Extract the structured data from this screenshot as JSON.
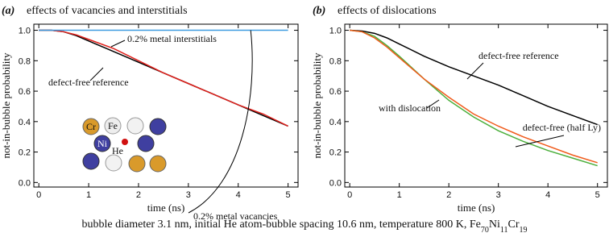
{
  "chart_data": [
    {
      "type": "line",
      "label": "(a)",
      "title": "effects of vacancies and interstitials",
      "xlabel": "time (ns)",
      "ylabel": "not-in-bubble probability",
      "xlim": [
        -0.1,
        5.2
      ],
      "xticks": [
        0,
        1,
        2,
        3,
        4,
        5
      ],
      "ylim": [
        -0.03,
        1.04
      ],
      "yticks": [
        {
          "value": 0,
          "label": "0.0"
        },
        0.2,
        0.4,
        0.6,
        0.8,
        {
          "value": 1,
          "label": "1.0"
        }
      ],
      "x": [
        0,
        0.25,
        0.5,
        0.75,
        1,
        1.5,
        2,
        2.5,
        3,
        3.5,
        4,
        4.5,
        5
      ],
      "series": [
        {
          "name": "defect-free reference",
          "color": "#000000",
          "values": [
            1.0,
            1.0,
            0.99,
            0.965,
            0.93,
            0.86,
            0.79,
            0.72,
            0.65,
            0.58,
            0.51,
            0.44,
            0.37
          ]
        },
        {
          "name": "0.2% metal interstitials",
          "color": "#e0201b",
          "values": [
            1.0,
            1.0,
            0.99,
            0.97,
            0.94,
            0.88,
            0.8,
            0.72,
            0.65,
            0.58,
            0.51,
            0.45,
            0.37
          ]
        },
        {
          "name": "0.2% metal vacancies",
          "color": "#3d9be0",
          "values": [
            1.0,
            1.0,
            1.0,
            1.0,
            1.0,
            1.0,
            1.0,
            1.0,
            1.0,
            1.0,
            1.0,
            1.0,
            1.0
          ]
        }
      ],
      "inset": [
        "Cr",
        "Fe",
        "Ni",
        "He"
      ]
    },
    {
      "type": "line",
      "label": "(b)",
      "title": "effects of dislocations",
      "xlabel": "time (ns)",
      "ylabel": "not-in-bubble probability",
      "xlim": [
        -0.1,
        5.2
      ],
      "xticks": [
        0,
        1,
        2,
        3,
        4,
        5
      ],
      "ylim": [
        -0.03,
        1.04
      ],
      "yticks": [
        {
          "value": 0,
          "label": "0.0"
        },
        0.2,
        0.4,
        0.6,
        0.8,
        {
          "value": 1,
          "label": "1.0"
        }
      ],
      "x": [
        0,
        0.25,
        0.5,
        0.75,
        1,
        1.5,
        2,
        2.5,
        3,
        3.5,
        4,
        4.5,
        5
      ],
      "series": [
        {
          "name": "defect-free reference",
          "color": "#000000",
          "values": [
            1.0,
            0.995,
            0.98,
            0.95,
            0.91,
            0.83,
            0.76,
            0.7,
            0.64,
            0.57,
            0.5,
            0.44,
            0.38
          ]
        },
        {
          "name": "with dislocation",
          "color": "#4caf3c",
          "values": [
            1.0,
            0.99,
            0.96,
            0.9,
            0.83,
            0.68,
            0.54,
            0.43,
            0.34,
            0.27,
            0.21,
            0.16,
            0.11
          ]
        },
        {
          "name": "defect-free (half Ly)",
          "color": "#f05a1a",
          "values": [
            1.0,
            0.99,
            0.95,
            0.89,
            0.82,
            0.68,
            0.56,
            0.45,
            0.37,
            0.3,
            0.24,
            0.18,
            0.13
          ]
        }
      ]
    }
  ],
  "caption": {
    "text": "bubble diameter 3.1 nm, initial He atom-bubble spacing 10.6 nm, temperature 800 K, ",
    "formula": [
      {
        "element": "Fe",
        "count": 70
      },
      {
        "element": "Ni",
        "count": 11
      },
      {
        "element": "Cr",
        "count": 19
      }
    ]
  }
}
